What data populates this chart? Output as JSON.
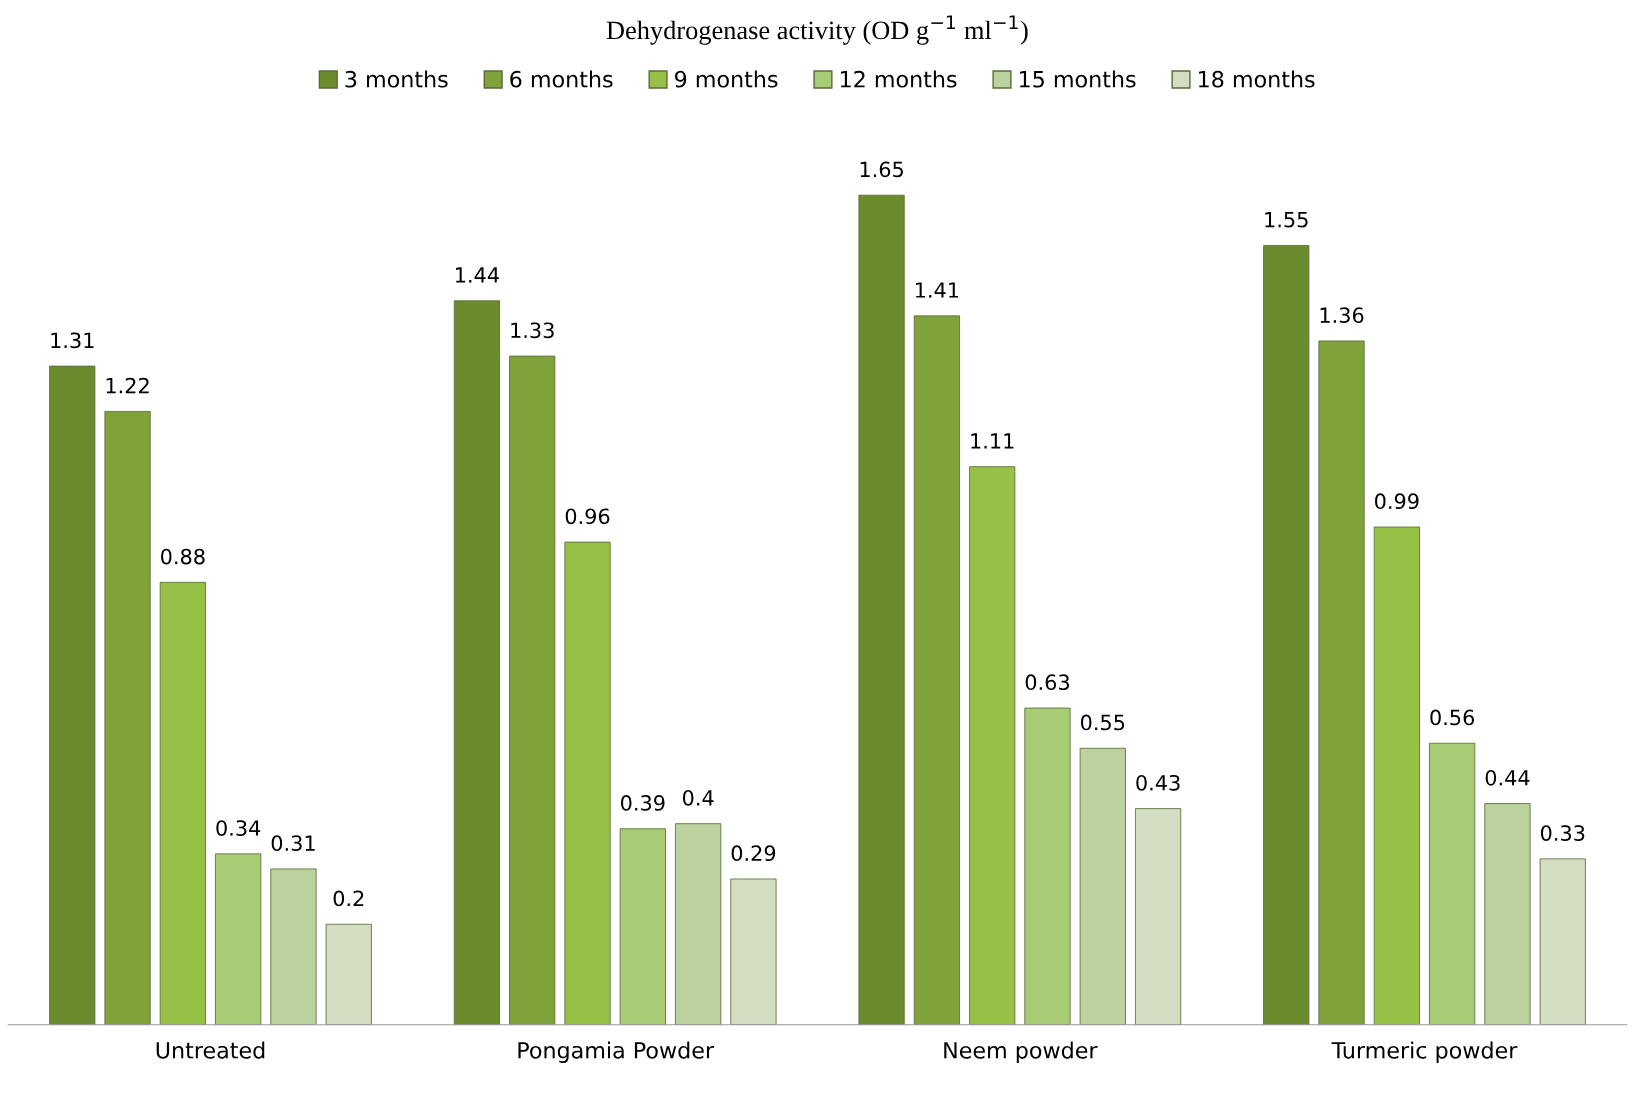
{
  "chart_data": {
    "type": "bar",
    "title": "Dehydrogenase activity (OD g$^{−1}$ ml$^{−1}$)",
    "categories": [
      "Untreated",
      "Pongamia Powder",
      "Neem powder",
      "Turmeric powder"
    ],
    "series": [
      {
        "name": "3 months",
        "color": "#6a8c2c",
        "values": [
          1.31,
          1.44,
          1.65,
          1.55
        ]
      },
      {
        "name": "6 months",
        "color": "#7fa33a",
        "values": [
          1.22,
          1.33,
          1.41,
          1.36
        ]
      },
      {
        "name": "9 months",
        "color": "#96c046",
        "values": [
          0.88,
          0.96,
          1.11,
          0.99
        ]
      },
      {
        "name": "12 months",
        "color": "#a8cc74",
        "values": [
          0.34,
          0.39,
          0.63,
          0.56
        ]
      },
      {
        "name": "15 months",
        "color": "#b9d29e",
        "values": [
          0.31,
          0.4,
          0.55,
          0.44
        ]
      },
      {
        "name": "18 months",
        "color": "#d3ddc2",
        "values": [
          0.2,
          0.29,
          0.43,
          0.33
        ]
      }
    ],
    "data_labels": true,
    "legend": "top",
    "grid": false
  }
}
